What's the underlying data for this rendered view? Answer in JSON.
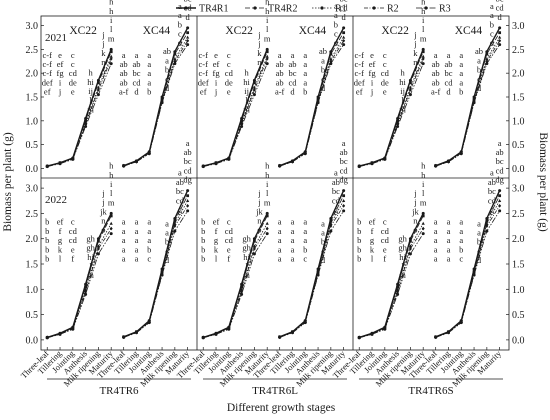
{
  "chart_data": {
    "type": "line",
    "ylabel": "Biomass per plant (g)",
    "xlabel": "Different growth stages",
    "ylim": [
      -0.2,
      3.2
    ],
    "yticks": [
      "0.0",
      "0.5",
      "1.0",
      "1.5",
      "2.0",
      "2.5",
      "3.0"
    ],
    "stages": [
      "Three-leaf",
      "Tillering",
      "Jointing",
      "Anthesis",
      "Milk ripening",
      "Maturity"
    ],
    "varieties": [
      "XC22",
      "XC44"
    ],
    "groups": [
      "TR4TR6",
      "TR4TR6L",
      "TR4TR6S"
    ],
    "years": [
      "2021",
      "2022"
    ],
    "legend": {
      "placement": "top",
      "entries": [
        "TR4R1",
        "TR4R2",
        "R1",
        "R2",
        "R3"
      ]
    },
    "grid": false,
    "treatment_values": {
      "2021": {
        "XC22": [
          [
            0.05,
            0.12,
            0.22,
            1.05,
            1.85,
            2.5
          ],
          [
            0.05,
            0.12,
            0.21,
            1.0,
            1.8,
            2.45
          ],
          [
            0.05,
            0.11,
            0.2,
            0.95,
            1.7,
            2.35
          ],
          [
            0.05,
            0.11,
            0.2,
            0.92,
            1.65,
            2.3
          ],
          [
            0.04,
            0.1,
            0.19,
            0.88,
            1.55,
            2.2
          ]
        ],
        "XC44": [
          [
            0.06,
            0.16,
            0.35,
            1.5,
            2.45,
            2.95
          ],
          [
            0.06,
            0.15,
            0.34,
            1.45,
            2.4,
            2.85
          ],
          [
            0.06,
            0.15,
            0.33,
            1.42,
            2.3,
            2.75
          ],
          [
            0.05,
            0.14,
            0.32,
            1.4,
            2.25,
            2.68
          ],
          [
            0.05,
            0.14,
            0.31,
            1.38,
            2.2,
            2.6
          ]
        ]
      },
      "2022": {
        "XC22": [
          [
            0.05,
            0.13,
            0.25,
            1.1,
            2.0,
            2.5
          ],
          [
            0.05,
            0.12,
            0.24,
            1.05,
            1.95,
            2.45
          ],
          [
            0.05,
            0.12,
            0.23,
            1.0,
            1.85,
            2.3
          ],
          [
            0.05,
            0.11,
            0.22,
            0.95,
            1.8,
            2.2
          ],
          [
            0.04,
            0.11,
            0.21,
            0.9,
            1.7,
            2.1
          ]
        ],
        "XC44": [
          [
            0.06,
            0.16,
            0.38,
            1.4,
            2.4,
            2.95
          ],
          [
            0.06,
            0.16,
            0.37,
            1.35,
            2.35,
            2.85
          ],
          [
            0.06,
            0.15,
            0.36,
            1.33,
            2.3,
            2.75
          ],
          [
            0.05,
            0.15,
            0.35,
            1.3,
            2.25,
            2.65
          ],
          [
            0.05,
            0.14,
            0.34,
            1.28,
            2.15,
            2.55
          ]
        ]
      }
    },
    "significance_letters": {
      "2021": {
        "XC22": [
          [
            "c-f",
            "c-f",
            "c-f",
            "def",
            "ef"
          ],
          [
            "e",
            "ef",
            "fg",
            "i",
            "j"
          ],
          [
            "c",
            "c",
            "cd",
            "de",
            "e"
          ],
          [
            "h",
            "hi",
            "ij",
            "l",
            "m"
          ],
          [
            "j",
            "j",
            "k",
            "n",
            "o"
          ],
          [
            "h",
            "h",
            "i",
            "l",
            "m"
          ]
        ],
        "XC44": [
          [
            "a",
            "ab",
            "ab",
            "ab",
            "a-f"
          ],
          [
            "a",
            "ab",
            "bc",
            "cd",
            "d"
          ],
          [
            "a",
            "a",
            "a",
            "a",
            "b"
          ],
          [
            "ab",
            "a",
            "b",
            "c",
            "d"
          ],
          [
            "a",
            "a",
            "b",
            "c",
            "d"
          ],
          [
            "a",
            "ab",
            "bc",
            "cd",
            "d"
          ]
        ]
      },
      "2022": {
        "XC22": [
          [
            "b",
            "b",
            "b",
            "b",
            "b"
          ],
          [
            "ef",
            "f",
            "g",
            "k",
            "l"
          ],
          [
            "c",
            "cd",
            "cd",
            "e",
            "f"
          ],
          [
            "gh",
            "gh",
            "hi",
            "l",
            "m"
          ],
          [
            "j",
            "j",
            "jk",
            "n",
            "o"
          ],
          [
            "h",
            "h",
            "i",
            "l",
            "m"
          ]
        ],
        "XC44": [
          [
            "a",
            "a",
            "a",
            "a",
            "a"
          ],
          [
            "a",
            "a",
            "a",
            "a",
            "a"
          ],
          [
            "a",
            "a",
            "a",
            "b",
            "c"
          ],
          [
            "a",
            "a",
            "b",
            "c",
            "d"
          ],
          [
            "a",
            "ab",
            "bc",
            "cd",
            "g"
          ],
          [
            "a",
            "ab",
            "bc",
            "cd",
            "dg"
          ]
        ]
      }
    }
  }
}
